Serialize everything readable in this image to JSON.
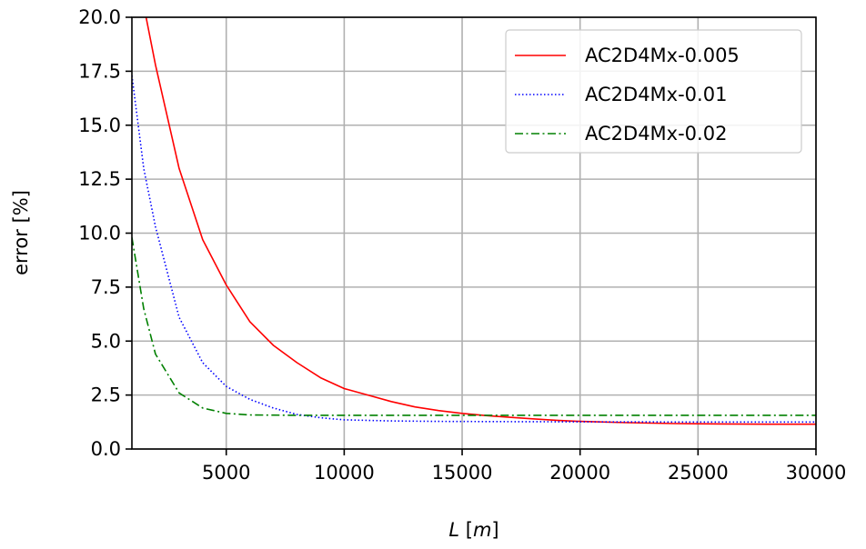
{
  "chart_data": {
    "type": "line",
    "title": "",
    "xlabel": "L [m]",
    "xlabel_parts": [
      "L",
      " [",
      "m",
      "]"
    ],
    "ylabel": "error [%]",
    "xlim": [
      1000,
      30000
    ],
    "ylim": [
      0,
      20
    ],
    "xticks": [
      5000,
      10000,
      15000,
      20000,
      25000,
      30000
    ],
    "xtick_labels": [
      "5000",
      "10000",
      "15000",
      "20000",
      "25000",
      "30000"
    ],
    "yticks": [
      0,
      2.5,
      5,
      7.5,
      10,
      12.5,
      15,
      17.5,
      20
    ],
    "ytick_labels": [
      "0.0",
      "2.5",
      "5.0",
      "7.5",
      "10.0",
      "12.5",
      "15.0",
      "17.5",
      "20.0"
    ],
    "grid": true,
    "legend_position": "top-right",
    "series": [
      {
        "name": "AC2D4Mx-0.005",
        "color": "#ff0000",
        "style": "solid",
        "x": [
          1600,
          2000,
          3000,
          4000,
          5000,
          6000,
          7000,
          8000,
          9000,
          10000,
          11000,
          12000,
          13000,
          14000,
          15000,
          16000,
          17000,
          18000,
          19000,
          20000,
          22000,
          24000,
          26000,
          28000,
          30000
        ],
        "y": [
          20.0,
          17.8,
          13.0,
          9.7,
          7.6,
          5.9,
          4.8,
          4.0,
          3.3,
          2.8,
          2.5,
          2.2,
          1.95,
          1.78,
          1.65,
          1.55,
          1.47,
          1.4,
          1.33,
          1.28,
          1.22,
          1.18,
          1.16,
          1.15,
          1.15
        ]
      },
      {
        "name": "AC2D4Mx-0.01",
        "color": "#0000ff",
        "style": "dotted",
        "x": [
          1000,
          1500,
          2000,
          3000,
          4000,
          5000,
          6000,
          7000,
          8000,
          9000,
          10000,
          12000,
          14000,
          16000,
          20000,
          25000,
          30000
        ],
        "y": [
          17.3,
          13.0,
          10.3,
          6.1,
          4.0,
          2.9,
          2.3,
          1.9,
          1.6,
          1.45,
          1.35,
          1.3,
          1.28,
          1.27,
          1.26,
          1.25,
          1.25
        ]
      },
      {
        "name": "AC2D4Mx-0.02",
        "color": "#008000",
        "style": "dashdot",
        "x": [
          1000,
          1500,
          2000,
          3000,
          4000,
          5000,
          6000,
          7000,
          8000,
          10000,
          15000,
          20000,
          25000,
          30000
        ],
        "y": [
          9.8,
          6.5,
          4.4,
          2.6,
          1.9,
          1.65,
          1.58,
          1.57,
          1.56,
          1.56,
          1.56,
          1.56,
          1.56,
          1.56
        ]
      }
    ]
  }
}
